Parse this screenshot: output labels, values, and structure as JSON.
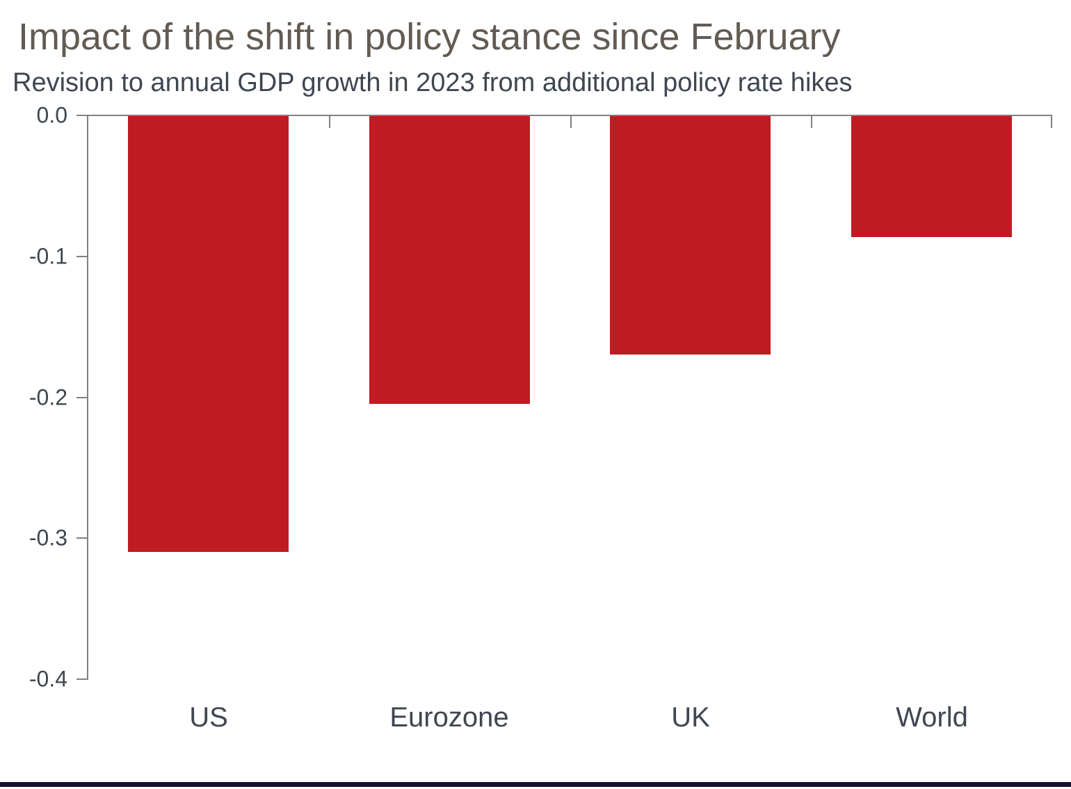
{
  "page": {
    "title": "Impact of the shift in policy stance since February",
    "subtitle": "Revision to annual GDP growth in 2023 from additional policy rate hikes"
  },
  "colors": {
    "bar": "#bf1b23",
    "axis": "#808080",
    "title_text": "#635b52",
    "label_text": "#3e4651",
    "footer_bar": "#14142f",
    "background": "#ffffff"
  },
  "chart_data": {
    "type": "bar",
    "title": "Impact of the shift in policy stance since February",
    "subtitle": "Revision to annual GDP growth in 2023 from additional policy rate hikes",
    "categories": [
      "US",
      "Eurozone",
      "UK",
      "World"
    ],
    "values": [
      -0.31,
      -0.205,
      -0.17,
      -0.087
    ],
    "xlabel": "",
    "ylabel": "",
    "ylim": [
      -0.4,
      0.0
    ],
    "yticks": [
      0.0,
      -0.1,
      -0.2,
      -0.3,
      -0.4
    ],
    "ytick_labels": [
      "0.0",
      "-0.1",
      "-0.2",
      "-0.3",
      "-0.4"
    ],
    "bar_color": "#bf1b23",
    "grid": false,
    "legend_position": "none"
  }
}
